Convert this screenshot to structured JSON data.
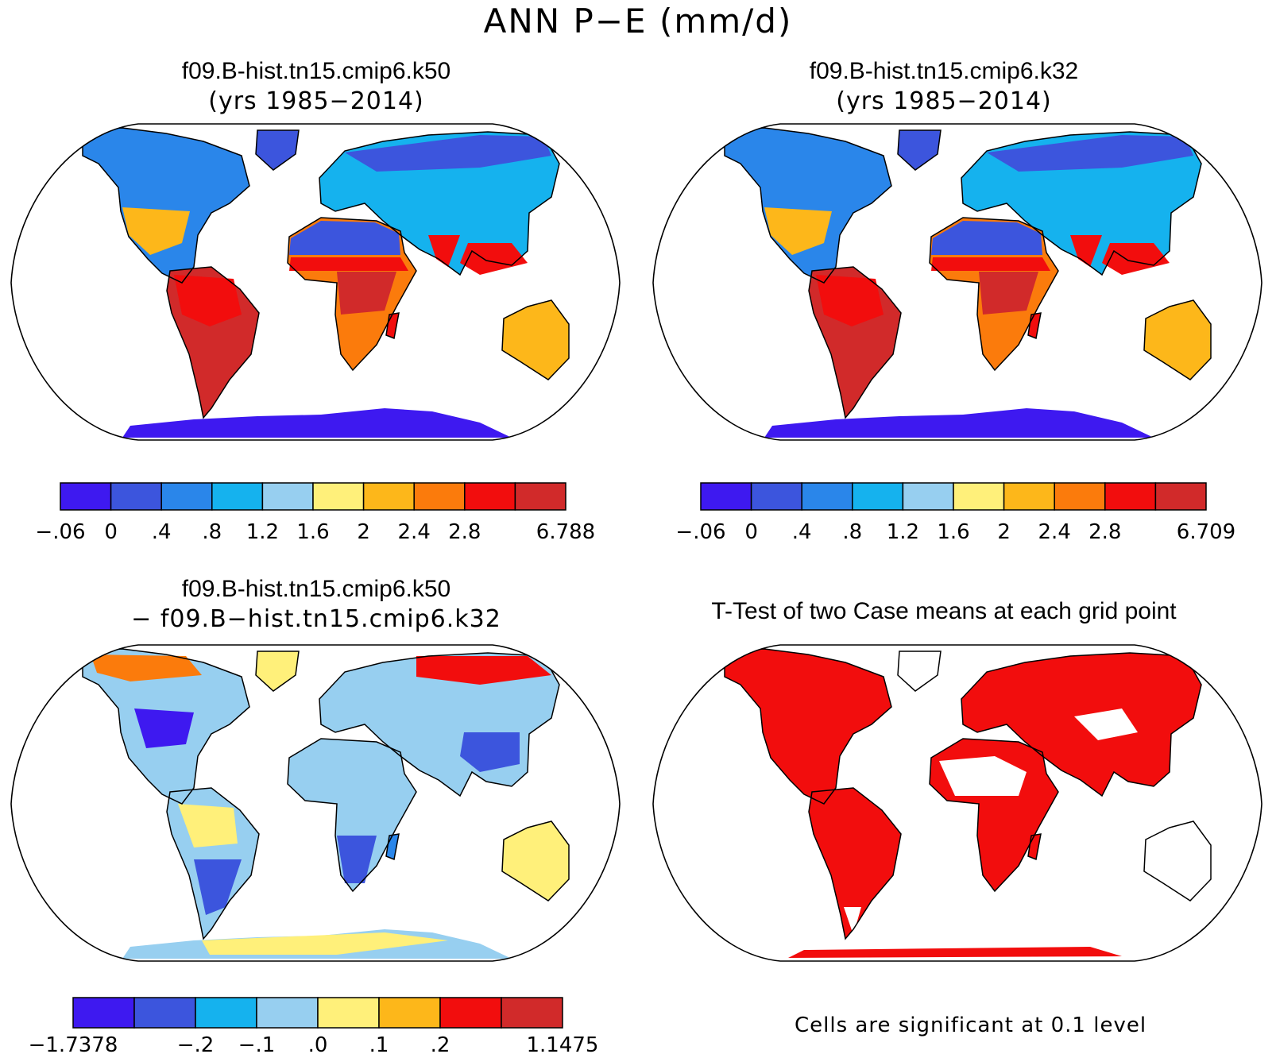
{
  "main_title": "ANN P−E (mm/d)",
  "panels": [
    {
      "title": "f09.B-hist.tn15.cmip6.k50",
      "subtitle": "(yrs 1985−2014)"
    },
    {
      "title": "f09.B-hist.tn15.cmip6.k32",
      "subtitle": "(yrs 1985−2014)"
    },
    {
      "title": "f09.B-hist.tn15.cmip6.k50",
      "subtitle": "− f09.B−hist.tn15.cmip6.k32"
    },
    {
      "title": "T-Test of two Case means at each grid point",
      "subtitle": ""
    }
  ],
  "colorbars": [
    {
      "labels": [
        "−.06",
        "0",
        ".4",
        ".8",
        "1.2",
        "1.6",
        "2",
        "2.4",
        "2.8",
        "",
        "6.788"
      ],
      "colors": [
        "#3e19f0",
        "#3c55dd",
        "#2a86ea",
        "#15b2ee",
        "#97cff0",
        "#fff07a",
        "#fdb71a",
        "#fb7b0c",
        "#f20d0d",
        "#d12a2a"
      ]
    },
    {
      "labels": [
        "−.06",
        "0",
        ".4",
        ".8",
        "1.2",
        "1.6",
        "2",
        "2.4",
        "2.8",
        "",
        "6.709"
      ],
      "colors": [
        "#3e19f0",
        "#3c55dd",
        "#2a86ea",
        "#15b2ee",
        "#97cff0",
        "#fff07a",
        "#fdb71a",
        "#fb7b0c",
        "#f20d0d",
        "#d12a2a"
      ]
    },
    {
      "labels": [
        "−1.7378",
        "",
        "−.2",
        "−.1",
        ".0",
        ".1",
        ".2",
        "",
        "1.1475"
      ],
      "colors": [
        "#3e19f0",
        "#3c55dd",
        "#15b2ee",
        "#97cff0",
        "#fff07a",
        "#fdb71a",
        "#f20d0d",
        "#d12a2a"
      ]
    }
  ],
  "significance_note": "Cells are significant at 0.1 level",
  "chart_data": [
    {
      "type": "heatmap",
      "title": "f09.B-hist.tn15.cmip6.k50",
      "subtitle": "(yrs 1985−2014)",
      "variable": "ANN P−E (mm/d)",
      "levels": [
        -0.06,
        0,
        0.4,
        0.8,
        1.2,
        1.6,
        2,
        2.4,
        2.8,
        6.788
      ]
    },
    {
      "type": "heatmap",
      "title": "f09.B-hist.tn15.cmip6.k32",
      "subtitle": "(yrs 1985−2014)",
      "variable": "ANN P−E (mm/d)",
      "levels": [
        -0.06,
        0,
        0.4,
        0.8,
        1.2,
        1.6,
        2,
        2.4,
        2.8,
        6.709
      ]
    },
    {
      "type": "heatmap",
      "title": "f09.B-hist.tn15.cmip6.k50",
      "subtitle": "− f09.B−hist.tn15.cmip6.k32",
      "variable": "ANN P−E (mm/d)",
      "levels": [
        -1.7378,
        -0.2,
        -0.1,
        0.0,
        0.1,
        0.2,
        1.1475
      ]
    },
    {
      "type": "heatmap",
      "title": "T-Test of two Case means at each grid point",
      "note": "Cells are significant at 0.1 level",
      "significance_level": 0.1,
      "color": "#f20d0d"
    }
  ]
}
